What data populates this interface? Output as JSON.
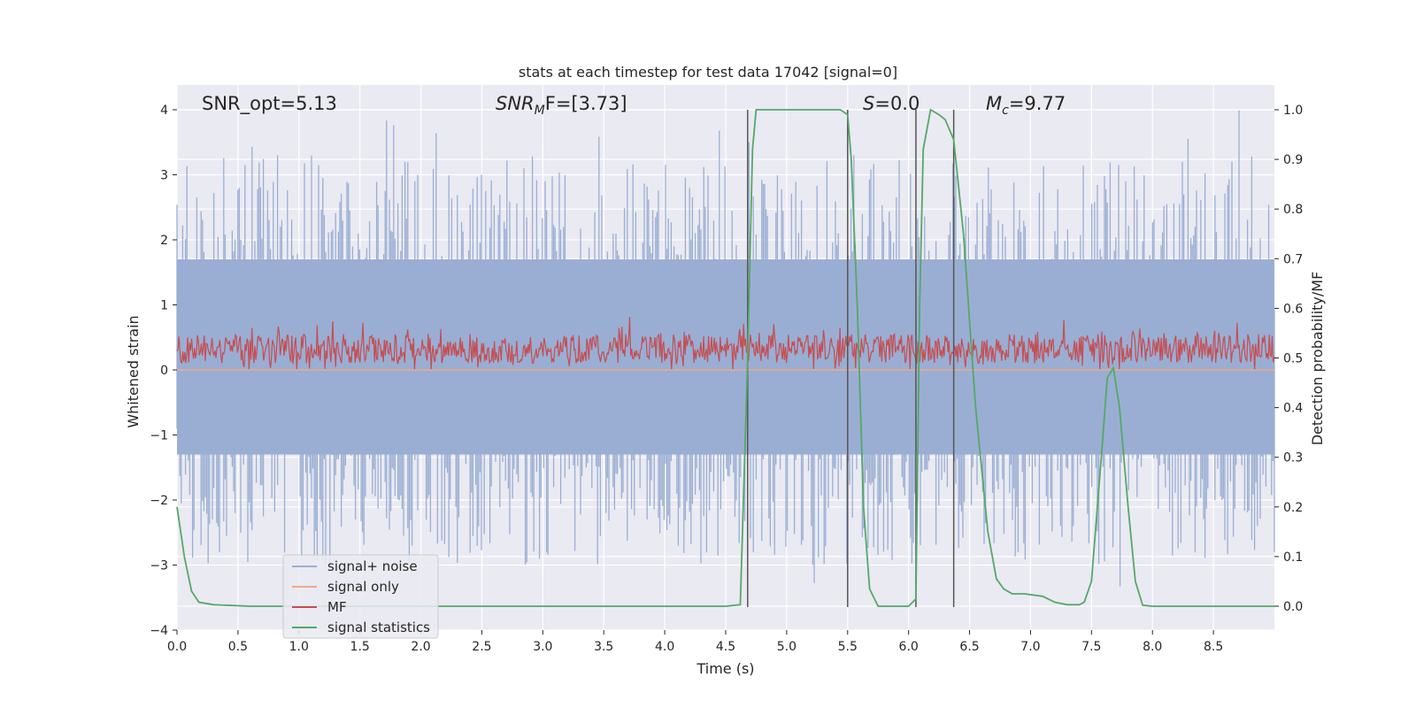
{
  "chart_data": {
    "type": "line",
    "title": "stats at each timestep for test data 17042 [signal=0]",
    "xlabel": "Time (s)",
    "ylabel": "Whitened strain",
    "ylabel_right": "Detection probability/MF",
    "xlim": [
      0.0,
      9.0
    ],
    "ylim": [
      -4.0,
      4.0
    ],
    "ylim_right": [
      0.0,
      1.0
    ],
    "x_ticks": [
      "0.0",
      "0.5",
      "1.0",
      "1.5",
      "2.0",
      "2.5",
      "3.0",
      "3.5",
      "4.0",
      "4.5",
      "5.0",
      "5.5",
      "6.0",
      "6.5",
      "7.0",
      "7.5",
      "8.0",
      "8.5"
    ],
    "y_ticks": [
      "4",
      "3",
      "2",
      "1",
      "0",
      "−1",
      "−2",
      "−3",
      "−4"
    ],
    "y_right_ticks": [
      "1.0",
      "0.9",
      "0.8",
      "0.7",
      "0.6",
      "0.5",
      "0.4",
      "0.3",
      "0.2",
      "0.1",
      "0.0"
    ],
    "grid": true,
    "legend_position": "lower-left",
    "annotations": {
      "snr_opt": "SNR_opt=5.13",
      "snr_mf_main": "SNR",
      "snr_mf_sub": "M",
      "snr_mf_rest": "F=[3.73]",
      "s_label": "S",
      "s_value": "=0.0",
      "mc_main": "M",
      "mc_sub": "c",
      "mc_value": "=9.77"
    },
    "vertical_lines_x": [
      4.68,
      5.5,
      6.06,
      6.37
    ],
    "series": [
      {
        "name": "signal+ noise",
        "color": "#9aaed3",
        "axis": "left",
        "description": "dense noise trace, spikes mostly within -2.5..3, extremes about 4.0 and -3.6",
        "envelope_upper": 1.7,
        "envelope_lower": -1.3,
        "peak_max": 4.0,
        "peak_min": -3.6
      },
      {
        "name": "signal only",
        "color": "#eea98a",
        "axis": "left",
        "values_constant": 0.0
      },
      {
        "name": "MF",
        "color": "#c44e52",
        "axis": "left",
        "description": "dense noise band between 0.0 and 0.9",
        "band_lower": 0.0,
        "band_upper": 0.9
      },
      {
        "name": "signal statistics",
        "color": "#55a868",
        "axis": "right",
        "x": [
          0.0,
          0.06,
          0.12,
          0.18,
          0.3,
          0.6,
          1.0,
          2.0,
          3.0,
          4.0,
          4.5,
          4.62,
          4.68,
          4.72,
          4.75,
          4.8,
          5.0,
          5.3,
          5.44,
          5.5,
          5.53,
          5.58,
          5.63,
          5.68,
          5.75,
          5.9,
          6.0,
          6.06,
          6.09,
          6.12,
          6.18,
          6.25,
          6.3,
          6.37,
          6.45,
          6.55,
          6.65,
          6.72,
          6.78,
          6.85,
          6.95,
          7.1,
          7.2,
          7.3,
          7.4,
          7.44,
          7.5,
          7.58,
          7.63,
          7.68,
          7.73,
          7.8,
          7.86,
          7.92,
          8.0,
          8.5,
          9.0
        ],
        "y": [
          0.2,
          0.1,
          0.03,
          0.008,
          0.003,
          0.0,
          0.0,
          0.0,
          0.0,
          0.0,
          0.0,
          0.003,
          0.5,
          0.92,
          1.0,
          1.0,
          1.0,
          1.0,
          1.0,
          0.99,
          0.9,
          0.6,
          0.2,
          0.035,
          0.0,
          0.0,
          0.0,
          0.015,
          0.6,
          0.92,
          1.0,
          0.99,
          0.98,
          0.94,
          0.75,
          0.4,
          0.15,
          0.055,
          0.035,
          0.025,
          0.025,
          0.02,
          0.008,
          0.003,
          0.003,
          0.008,
          0.05,
          0.3,
          0.46,
          0.48,
          0.4,
          0.2,
          0.05,
          0.002,
          0.0,
          0.0,
          0.0
        ]
      }
    ]
  }
}
